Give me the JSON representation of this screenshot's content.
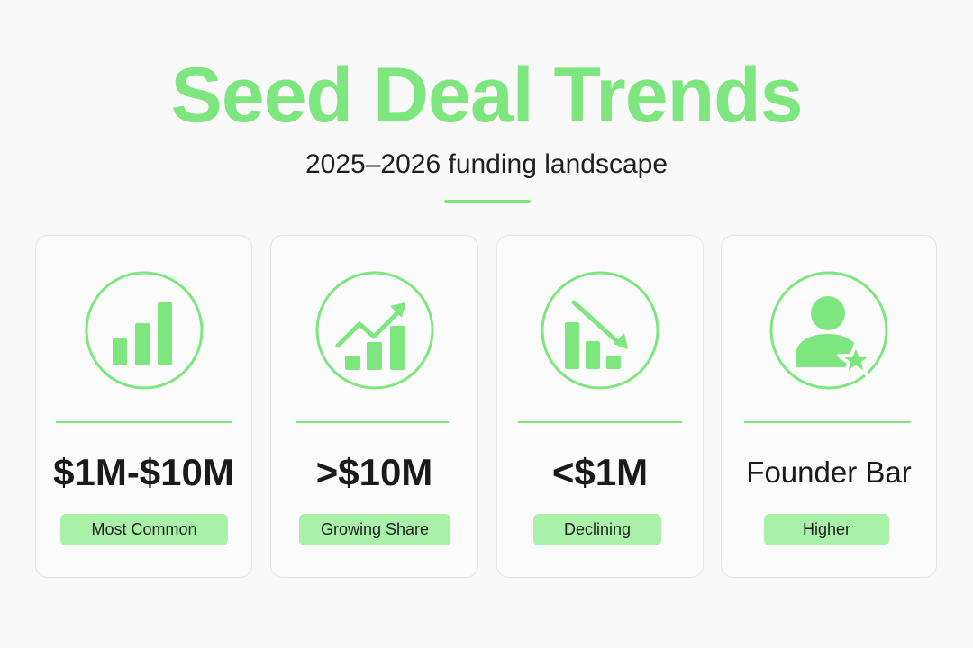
{
  "header": {
    "title": "Seed Deal Trends",
    "subtitle": "2025–2026 funding landscape"
  },
  "colors": {
    "accent": "#7ee67e",
    "badge": "#a9f0a9",
    "text": "#1a1a1a"
  },
  "cards": [
    {
      "icon": "bar-chart-icon",
      "value": "$1M-$10M",
      "badge": "Most Common"
    },
    {
      "icon": "trend-up-icon",
      "value": ">$10M",
      "badge": "Growing Share"
    },
    {
      "icon": "trend-down-icon",
      "value": "<$1M",
      "badge": "Declining"
    },
    {
      "icon": "founder-star-icon",
      "value": "Founder Bar",
      "badge": "Higher"
    }
  ]
}
